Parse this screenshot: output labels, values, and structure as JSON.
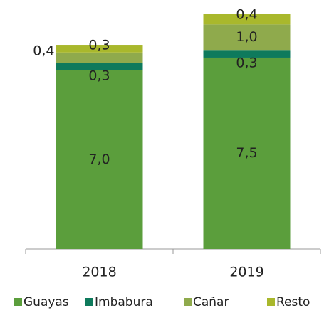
{
  "chart_data": {
    "type": "stacked_bar",
    "categories": [
      "2018",
      "2019"
    ],
    "series": [
      {
        "name": "Guayas",
        "color": "#5b9e3c",
        "values": [
          7.0,
          7.5
        ],
        "value_labels": [
          "7,0",
          "7,5"
        ]
      },
      {
        "name": "Imbabura",
        "color": "#0e7a5c",
        "values": [
          0.3,
          0.3
        ],
        "value_labels": [
          "0,3",
          "0,3"
        ]
      },
      {
        "name": "Cañar",
        "color": "#8faa4c",
        "values": [
          0.4,
          1.0
        ],
        "value_labels": [
          "0,4",
          "1,0"
        ]
      },
      {
        "name": "Resto",
        "color": "#a9b82c",
        "values": [
          0.3,
          0.4
        ],
        "value_labels": [
          "0,3",
          "0,4"
        ]
      }
    ],
    "legend": "bottom"
  }
}
